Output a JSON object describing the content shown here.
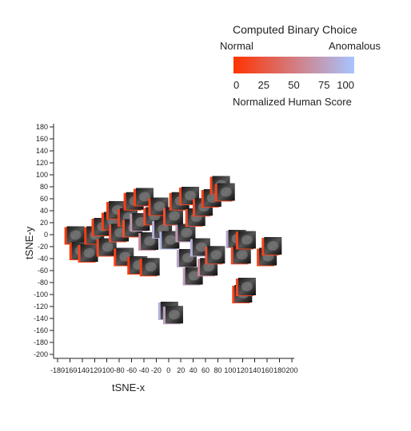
{
  "chart_data": {
    "type": "scatter",
    "title": "",
    "xlabel": "tSNE-x",
    "ylabel": "tSNE-y",
    "xlim": [
      -180,
      200
    ],
    "ylim": [
      -200,
      180
    ],
    "x_ticks": [
      -180,
      -160,
      -140,
      -120,
      -100,
      -80,
      -60,
      -40,
      -20,
      0,
      20,
      40,
      60,
      80,
      100,
      120,
      140,
      160,
      180,
      200
    ],
    "y_ticks": [
      180,
      160,
      140,
      120,
      100,
      80,
      60,
      40,
      20,
      0,
      -20,
      -40,
      -60,
      -80,
      -100,
      -120,
      -140,
      -160,
      -180,
      -200
    ],
    "legend": {
      "title": "Computed Binary Choice",
      "left_label": "Normal",
      "right_label": "Anomalous",
      "scale_label": "Normalized Human Score",
      "scale_ticks": [
        0,
        25,
        50,
        75,
        100
      ],
      "color_low": "#ff3300",
      "color_high": "#a7c4ff"
    },
    "points": [
      {
        "x": -152,
        "y": -2,
        "score": 5
      },
      {
        "x": -144,
        "y": -28,
        "score": 8
      },
      {
        "x": -130,
        "y": -32,
        "score": 12
      },
      {
        "x": -120,
        "y": -2,
        "score": 6
      },
      {
        "x": -108,
        "y": 12,
        "score": 10
      },
      {
        "x": -100,
        "y": -22,
        "score": 15
      },
      {
        "x": -92,
        "y": 22,
        "score": 8
      },
      {
        "x": -84,
        "y": 40,
        "score": 7
      },
      {
        "x": -80,
        "y": 2,
        "score": 20
      },
      {
        "x": -72,
        "y": -38,
        "score": 9
      },
      {
        "x": -66,
        "y": 28,
        "score": 12
      },
      {
        "x": -58,
        "y": 10,
        "score": 18
      },
      {
        "x": -56,
        "y": 55,
        "score": 6
      },
      {
        "x": -50,
        "y": -52,
        "score": 5
      },
      {
        "x": -46,
        "y": 20,
        "score": 70
      },
      {
        "x": -40,
        "y": 62,
        "score": 9
      },
      {
        "x": -32,
        "y": -12,
        "score": 60
      },
      {
        "x": -30,
        "y": -55,
        "score": 8
      },
      {
        "x": -24,
        "y": 30,
        "score": 15
      },
      {
        "x": -16,
        "y": 46,
        "score": 10
      },
      {
        "x": -10,
        "y": 8,
        "score": 85
      },
      {
        "x": 2,
        "y": -10,
        "score": 90
      },
      {
        "x": 8,
        "y": 30,
        "score": 20
      },
      {
        "x": 18,
        "y": 55,
        "score": 12
      },
      {
        "x": 28,
        "y": 2,
        "score": 70
      },
      {
        "x": 30,
        "y": -40,
        "score": 80
      },
      {
        "x": 34,
        "y": 64,
        "score": 10
      },
      {
        "x": 40,
        "y": -70,
        "score": 75
      },
      {
        "x": 44,
        "y": 28,
        "score": 18
      },
      {
        "x": 52,
        "y": -22,
        "score": 85
      },
      {
        "x": 56,
        "y": 45,
        "score": 14
      },
      {
        "x": 64,
        "y": -55,
        "score": 60
      },
      {
        "x": 70,
        "y": 60,
        "score": 8
      },
      {
        "x": 76,
        "y": -35,
        "score": 20
      },
      {
        "x": 84,
        "y": 82,
        "score": 10
      },
      {
        "x": 92,
        "y": 70,
        "score": 12
      },
      {
        "x": 110,
        "y": -8,
        "score": 80
      },
      {
        "x": 118,
        "y": -35,
        "score": 15
      },
      {
        "x": 126,
        "y": -10,
        "score": 10
      },
      {
        "x": 160,
        "y": -38,
        "score": 9
      },
      {
        "x": 168,
        "y": -20,
        "score": 12
      },
      {
        "x": 120,
        "y": -100,
        "score": 10
      },
      {
        "x": 126,
        "y": -88,
        "score": 14
      },
      {
        "x": 0,
        "y": -128,
        "score": 88
      },
      {
        "x": 8,
        "y": -135,
        "score": 75
      }
    ]
  }
}
